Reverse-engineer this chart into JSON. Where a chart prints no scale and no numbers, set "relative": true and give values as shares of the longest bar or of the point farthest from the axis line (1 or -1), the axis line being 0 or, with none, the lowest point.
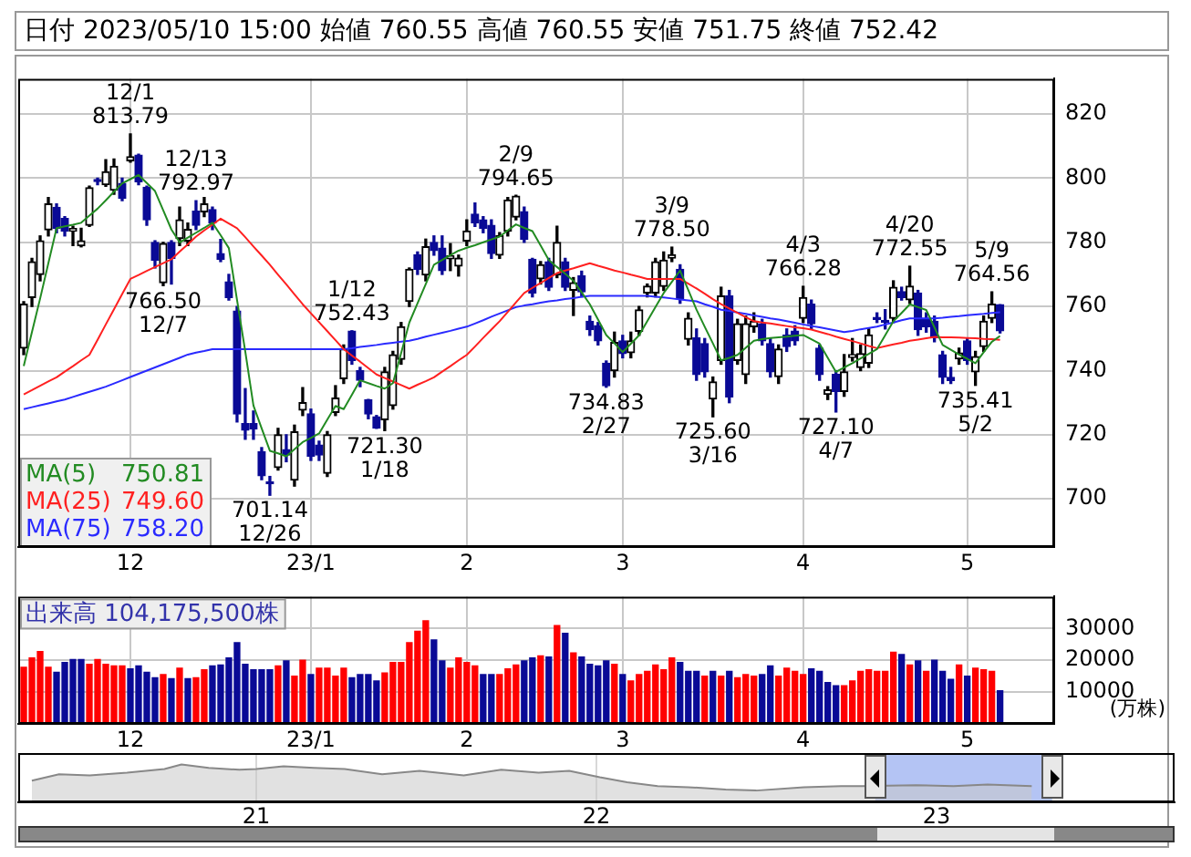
{
  "chart_data": [
    {
      "type": "candlestick",
      "title": "日付 2023/05/10 15:00 始値 760.55 高値 760.55 安値 751.75 終値 752.42",
      "categories": [
        null,
        null,
        null,
        null,
        null,
        null,
        null,
        null,
        null,
        null,
        null,
        null,
        null,
        "12",
        null,
        null,
        null,
        null,
        null,
        null,
        null,
        null,
        null,
        null,
        null,
        null,
        null,
        null,
        null,
        null,
        null,
        null,
        null,
        null,
        null,
        "23/1",
        null,
        null,
        null,
        null,
        null,
        null,
        null,
        null,
        null,
        null,
        null,
        null,
        null,
        null,
        null,
        null,
        null,
        null,
        "2",
        null,
        null,
        null,
        null,
        null,
        null,
        null,
        null,
        null,
        null,
        null,
        null,
        null,
        null,
        null,
        null,
        null,
        null,
        "3",
        null,
        null,
        null,
        null,
        null,
        null,
        null,
        null,
        null,
        null,
        null,
        null,
        null,
        null,
        null,
        null,
        null,
        null,
        null,
        null,
        null,
        "4",
        null,
        null,
        null,
        null,
        null,
        null,
        null,
        null,
        null,
        null,
        null,
        null,
        null,
        null,
        null,
        null,
        null,
        null,
        null,
        "5",
        null,
        null,
        null,
        null
      ],
      "ohlc": [
        [
          747,
          761.5,
          745,
          760.7
        ],
        [
          762.8,
          775,
          760,
          773.9
        ],
        [
          770,
          782,
          768,
          780.5
        ],
        [
          783.9,
          794,
          782,
          792
        ],
        [
          790.9,
          792,
          783,
          784.4
        ],
        [
          787.4,
          788,
          782,
          783.5
        ],
        [
          783.5,
          785,
          779,
          784.3
        ],
        [
          778.9,
          784.4,
          778.6,
          780.5
        ],
        [
          785.3,
          797.5,
          785,
          797
        ],
        [
          799.6,
          800,
          798,
          799
        ],
        [
          798,
          805.8,
          797.5,
          802
        ],
        [
          796.3,
          806,
          795,
          803.7
        ],
        [
          798.4,
          800,
          793,
          793.7
        ],
        [
          805.4,
          813.79,
          805,
          806.7
        ],
        [
          807.2,
          807.5,
          798,
          798.9
        ],
        [
          797.2,
          797.5,
          785.3,
          787
        ],
        [
          780,
          780.5,
          772,
          774.4
        ],
        [
          767.4,
          780,
          766.5,
          779.6
        ],
        [
          780,
          780.5,
          767,
          775
        ],
        [
          781.2,
          791,
          779,
          787
        ],
        [
          780.4,
          786,
          779,
          784
        ],
        [
          789.7,
          792.97,
          784,
          785.3
        ],
        [
          789.5,
          794,
          788,
          792
        ],
        [
          790.2,
          791,
          784,
          786.1
        ],
        [
          776.5,
          780.9,
          774,
          774.7
        ],
        [
          767.7,
          770,
          762,
          762.8
        ],
        [
          758.6,
          760,
          724,
          726.5
        ],
        [
          723.5,
          734.4,
          718.6,
          721.4
        ],
        [
          723.5,
          727.4,
          718.6,
          721.8
        ],
        [
          714.7,
          716,
          706,
          707.2
        ],
        [
          705,
          707,
          701.14,
          704.7
        ],
        [
          709.8,
          722,
          709,
          720
        ],
        [
          715.4,
          720,
          711.6,
          713.7
        ],
        [
          705.9,
          723,
          704,
          720.9
        ],
        [
          727.7,
          734.7,
          726,
          730
        ],
        [
          726.5,
          728,
          712,
          713.3
        ],
        [
          716.8,
          718,
          712,
          713.7
        ],
        [
          708,
          721,
          707,
          720
        ],
        [
          727,
          735.3,
          726,
          731.4
        ],
        [
          737.5,
          748,
          736,
          746.7
        ],
        [
          752.3,
          752.43,
          742,
          743.2
        ],
        [
          740,
          741,
          735,
          737
        ],
        [
          730.9,
          731,
          725,
          726.5
        ],
        [
          725.6,
          726,
          722,
          722.1
        ],
        [
          724.7,
          741,
          721.3,
          739.6
        ],
        [
          729.1,
          746,
          728,
          744.9
        ],
        [
          743.5,
          755,
          742,
          753.7
        ],
        [
          761.6,
          772,
          760,
          771.6
        ],
        [
          776.1,
          777,
          770,
          771.6
        ],
        [
          769.8,
          781,
          768,
          778.6
        ],
        [
          780,
          782,
          776,
          777.4
        ],
        [
          778.2,
          782,
          770,
          771.2
        ],
        [
          774.9,
          779.6,
          771.2,
          775.8
        ],
        [
          772.6,
          776,
          769.5,
          775.1
        ],
        [
          780.4,
          787,
          779,
          783.5
        ],
        [
          788.8,
          792.3,
          785,
          786.1
        ],
        [
          787,
          788,
          783,
          784.4
        ],
        [
          785.3,
          787,
          775,
          776.5
        ],
        [
          776,
          783,
          775,
          782.1
        ],
        [
          783.5,
          794,
          782,
          793.2
        ],
        [
          787.9,
          794.65,
          787,
          794.4
        ],
        [
          789.6,
          791,
          780,
          780.9
        ],
        [
          774.7,
          775,
          763,
          764.2
        ],
        [
          768.6,
          774,
          767,
          773
        ],
        [
          773.9,
          775,
          765,
          766
        ],
        [
          769.8,
          785,
          769,
          780
        ],
        [
          773.9,
          775,
          765,
          766
        ],
        [
          765.1,
          769,
          757.2,
          767.4
        ],
        [
          769.5,
          771,
          763,
          764.6
        ],
        [
          755.4,
          757,
          751,
          752.8
        ],
        [
          754,
          755,
          748,
          749.3
        ],
        [
          742.3,
          743,
          734.83,
          735.3
        ],
        [
          740,
          752,
          738,
          748.8
        ],
        [
          749.3,
          751,
          744,
          745.3
        ],
        [
          745.6,
          752,
          744,
          749.3
        ],
        [
          752.3,
          760,
          751,
          758.9
        ],
        [
          764.2,
          767,
          763,
          766.3
        ],
        [
          764.2,
          775,
          763,
          773.9
        ],
        [
          766.3,
          777,
          765,
          774.4
        ],
        [
          775.1,
          778.5,
          774,
          776.1
        ],
        [
          771.6,
          773,
          761,
          762.5
        ],
        [
          749.8,
          758,
          748,
          756.3
        ],
        [
          750.2,
          753,
          737,
          738.8
        ],
        [
          748.4,
          750,
          738,
          739.6
        ],
        [
          731.2,
          738,
          725.6,
          736.5
        ],
        [
          743.2,
          766,
          742,
          763.3
        ],
        [
          763.3,
          765,
          730,
          731.8
        ],
        [
          743.2,
          756,
          742,
          754.6
        ],
        [
          738.8,
          757,
          736,
          754.6
        ],
        [
          753.7,
          758,
          752,
          755.4
        ],
        [
          754.6,
          756,
          748,
          749.3
        ],
        [
          748.4,
          750,
          738,
          739.6
        ],
        [
          738.1,
          748,
          736,
          746.7
        ],
        [
          751.1,
          753,
          746,
          747.5
        ],
        [
          752.3,
          754,
          748,
          749.3
        ],
        [
          756.3,
          766.28,
          755,
          762.8
        ],
        [
          760.7,
          762,
          753,
          754.6
        ],
        [
          747,
          748,
          737,
          738.8
        ],
        [
          732.6,
          735,
          731,
          734
        ],
        [
          738.8,
          740,
          727.1,
          733.5
        ],
        [
          733.5,
          745,
          732,
          739.6
        ],
        [
          744.1,
          750,
          743,
          745
        ],
        [
          741,
          748,
          740,
          745.3
        ],
        [
          742.3,
          753,
          741,
          751.1
        ],
        [
          756.5,
          758,
          755,
          756
        ],
        [
          755.6,
          759,
          753,
          755.1
        ],
        [
          756.3,
          768,
          755,
          766
        ],
        [
          764.6,
          766,
          762,
          762.8
        ],
        [
          762.1,
          772.55,
          761,
          766.3
        ],
        [
          764.2,
          765,
          751,
          752.8
        ],
        [
          756.3,
          758,
          752,
          753.7
        ],
        [
          755.4,
          757,
          749,
          750.2
        ],
        [
          744.9,
          746,
          736,
          737.9
        ],
        [
          737.9,
          741,
          736,
          736.9
        ],
        [
          743.7,
          747,
          742,
          745.5
        ],
        [
          749.3,
          750,
          742,
          743.2
        ],
        [
          739.6,
          746,
          735.41,
          744.4
        ],
        [
          747.5,
          757,
          746,
          755.4
        ],
        [
          756.3,
          764.56,
          755,
          760.7
        ],
        [
          760.55,
          760.55,
          751.75,
          752.42
        ]
      ],
      "series": [
        {
          "name": "MA(5)",
          "type": "line",
          "color": "#228b22",
          "values": [
            741.4,
            752,
            762.5,
            773.5,
            784.4,
            785,
            785.5,
            786.1,
            788.3,
            790.5,
            793.1,
            795.8,
            798.4,
            799.7,
            801,
            798.5,
            796,
            790,
            784,
            780,
            781.5,
            783,
            784.5,
            786.1,
            782.2,
            778.2,
            762,
            746,
            729.1,
            722,
            715,
            714.2,
            713.3,
            715.5,
            717.7,
            719,
            720.4,
            724.7,
            729,
            728,
            732.5,
            737,
            736.1,
            735.2,
            734.4,
            736.1,
            745.5,
            755,
            761,
            767,
            773,
            774.5,
            776,
            777.4,
            778.3,
            779.1,
            780,
            780.9,
            781.8,
            783.7,
            785.6,
            784.5,
            783.5,
            779,
            774.5,
            772.3,
            770.2,
            768,
            764.4,
            760.7,
            755.9,
            751.1,
            748.5,
            745.8,
            748.4,
            751,
            755.4,
            759.8,
            764.2,
            767.7,
            771.2,
            765.1,
            759,
            753.7,
            748.5,
            743.2,
            744,
            744.9,
            747.1,
            749.3,
            749.8,
            750.2,
            750.4,
            750.6,
            750.9,
            751.1,
            749.8,
            748.4,
            744,
            739.6,
            741,
            742.3,
            743.8,
            745.2,
            746.7,
            751,
            755.4,
            758,
            760.7,
            759.8,
            758.9,
            753.5,
            748,
            746.5,
            745,
            743.7,
            742.3,
            745.7,
            749,
            750.8
          ]
        },
        {
          "name": "MA(25)",
          "type": "line",
          "color": "#ff2020",
          "values": [
            732.6,
            733.9,
            735.3,
            736.6,
            737.9,
            739.7,
            741.4,
            743.2,
            744.9,
            749.6,
            754.4,
            759.1,
            763.9,
            768.6,
            769.8,
            771.1,
            772.3,
            773.5,
            774.7,
            777.1,
            779.4,
            781.8,
            783.7,
            785.5,
            787.4,
            785.9,
            784.4,
            781.6,
            778.7,
            775.9,
            773,
            769.9,
            766.9,
            763.8,
            760.7,
            757.9,
            755.1,
            752.3,
            749.5,
            746.7,
            744.7,
            742.8,
            740.8,
            738.8,
            737.7,
            736.6,
            735.5,
            734.4,
            735.6,
            736.7,
            737.9,
            739.7,
            741.4,
            743.2,
            744.9,
            747.5,
            750.2,
            752.8,
            755.4,
            758.3,
            761.3,
            764.2,
            765.8,
            767.3,
            768.9,
            770.4,
            771.2,
            771.9,
            772.7,
            773.5,
            772.7,
            772,
            771.2,
            770.6,
            769.9,
            769.3,
            768.6,
            768.6,
            768.6,
            768.6,
            768.6,
            767.1,
            765.6,
            764,
            762.3,
            760.7,
            759.4,
            758,
            756.7,
            755.4,
            755,
            754.7,
            754.3,
            753.9,
            753.5,
            753.2,
            752.8,
            752.1,
            751.4,
            750.6,
            749.9,
            749.2,
            748.5,
            747.7,
            747,
            747.6,
            748.2,
            748.7,
            749.3,
            749.7,
            750.1,
            750.5,
            750.4,
            750.4,
            750.3,
            750.2,
            750.1,
            749.9,
            749.8,
            749.6
          ]
        },
        {
          "name": "MA(75)",
          "type": "line",
          "color": "#2a2aff",
          "values": [
            728,
            728.6,
            729.2,
            729.8,
            730.4,
            731,
            731.8,
            732.6,
            733.4,
            734.2,
            735,
            736,
            737,
            738,
            739,
            740,
            741,
            742,
            743,
            744,
            745,
            745.6,
            746.1,
            746.7,
            746.7,
            746.7,
            746.7,
            746.7,
            746.7,
            746.7,
            746.7,
            746.7,
            746.7,
            746.7,
            746.7,
            746.7,
            746.7,
            746.7,
            746.7,
            746.7,
            747,
            747.4,
            747.7,
            748,
            748.4,
            748.7,
            749,
            749.3,
            749.9,
            750.6,
            751.2,
            751.8,
            752.4,
            753.1,
            753.7,
            754.7,
            755.7,
            756.8,
            757.8,
            758.8,
            759.8,
            760.3,
            760.7,
            761.2,
            761.6,
            761.9,
            762.3,
            762.6,
            763,
            763.3,
            763.3,
            763.3,
            763.3,
            763.3,
            763.3,
            763.3,
            763.3,
            763,
            762.8,
            762.5,
            762.2,
            761.9,
            761.6,
            760.7,
            759.9,
            759,
            758.6,
            758.1,
            757.7,
            757.2,
            756.8,
            756.3,
            755.9,
            755.4,
            754.9,
            754.4,
            753.9,
            753.5,
            753,
            752.5,
            752,
            752.4,
            752.9,
            753.3,
            753.7,
            754.4,
            755,
            755.7,
            756.3,
            756.3,
            756.3,
            756.3,
            756.5,
            756.8,
            757,
            757.3,
            757.5,
            757.7,
            758,
            758.2
          ]
        }
      ],
      "ylim": [
        685,
        831
      ],
      "yticks": [
        700,
        720,
        740,
        760,
        780,
        800,
        820
      ],
      "grid": true,
      "legend": "bottom left",
      "annotations": [
        "750.81",
        "749.60",
        "758.20",
        {
          "text": "12/1 813.79",
          "y": 813.79
        },
        {
          "text": "12/13 792.97",
          "y": 792.97
        },
        {
          "text": "766.50 12/7",
          "y": 766.5
        },
        {
          "text": "701.14 12/26",
          "y": 701.14
        },
        {
          "text": "1/12 752.43",
          "y": 752.43
        },
        {
          "text": "721.30 1/18",
          "y": 721.3
        },
        {
          "text": "2/9 794.65",
          "y": 794.65
        },
        {
          "text": "734.83 2/27",
          "y": 734.83
        },
        {
          "text": "3/9 778.50",
          "y": 778.5
        },
        {
          "text": "725.60 3/16",
          "y": 725.6
        },
        {
          "text": "4/3 766.28",
          "y": 766.28
        },
        {
          "text": "727.10 4/7",
          "y": 727.1
        },
        {
          "text": "4/20 772.55",
          "y": 772.55
        },
        {
          "text": "735.41 5/2",
          "y": 735.41
        },
        {
          "text": "5/9 764.56",
          "y": 764.56
        }
      ]
    },
    {
      "type": "bar",
      "title": "出来高 104,175,500株",
      "ylabel": "(万株)",
      "categories": [
        null,
        null,
        null,
        null,
        null,
        null,
        null,
        null,
        null,
        null,
        null,
        null,
        null,
        "12",
        null,
        null,
        null,
        null,
        null,
        null,
        null,
        null,
        null,
        null,
        null,
        null,
        null,
        null,
        null,
        null,
        null,
        null,
        null,
        null,
        null,
        "23/1",
        null,
        null,
        null,
        null,
        null,
        null,
        null,
        null,
        null,
        null,
        null,
        null,
        null,
        null,
        null,
        null,
        null,
        null,
        "2",
        null,
        null,
        null,
        null,
        null,
        null,
        null,
        null,
        null,
        null,
        null,
        null,
        null,
        null,
        null,
        null,
        null,
        null,
        "3",
        null,
        null,
        null,
        null,
        null,
        null,
        null,
        null,
        null,
        null,
        null,
        null,
        null,
        null,
        null,
        null,
        null,
        null,
        null,
        null,
        null,
        "4",
        null,
        null,
        null,
        null,
        null,
        null,
        null,
        null,
        null,
        null,
        null,
        null,
        null,
        null,
        null,
        null,
        null,
        null,
        null,
        "5",
        null,
        null,
        null,
        null
      ],
      "values": [
        17800,
        20700,
        22700,
        17800,
        16200,
        19300,
        20200,
        20200,
        18700,
        20200,
        18700,
        18200,
        18200,
        17300,
        18200,
        16200,
        14500,
        15500,
        14200,
        17500,
        14200,
        14500,
        17000,
        18200,
        18500,
        20700,
        25500,
        18700,
        17000,
        17000,
        17000,
        18200,
        19800,
        15000,
        20000,
        15500,
        17500,
        17500,
        15000,
        17500,
        14500,
        15500,
        15500,
        13500,
        16000,
        19300,
        19300,
        25500,
        29100,
        32400,
        26400,
        19800,
        17500,
        20700,
        19300,
        18200,
        15500,
        15500,
        15500,
        17300,
        18500,
        19800,
        20700,
        21400,
        21000,
        30900,
        28500,
        22300,
        21000,
        18700,
        18200,
        19800,
        18700,
        15500,
        13500,
        15500,
        16500,
        18500,
        17000,
        20700,
        19300,
        16500,
        16500,
        15000,
        16500,
        15000,
        16500,
        14500,
        15500,
        15000,
        15500,
        18200,
        15000,
        17500,
        16500,
        15500,
        17300,
        16500,
        13000,
        12000,
        12000,
        13500,
        16500,
        17000,
        16500,
        16500,
        22500,
        21800,
        18500,
        19800,
        16500,
        20000,
        16500,
        14000,
        18500,
        15000,
        17500,
        17000,
        16500,
        10418
      ],
      "colors": [
        "#ff0000",
        "#ff0000",
        "#ff0000",
        "#ff0000",
        "#0a0a96",
        "#0a0a96",
        "#0a0a96",
        "#0a0a96",
        "#ff0000",
        "#ff0000",
        "#ff0000",
        "#ff0000",
        "#ff0000",
        "#0a0a96",
        "#0a0a96",
        "#0a0a96",
        "#0a0a96",
        "#ff0000",
        "#0a0a96",
        "#ff0000",
        "#0a0a96",
        "#ff0000",
        "#ff0000",
        "#0a0a96",
        "#0a0a96",
        "#0a0a96",
        "#0a0a96",
        "#0a0a96",
        "#0a0a96",
        "#0a0a96",
        "#0a0a96",
        "#ff0000",
        "#0a0a96",
        "#ff0000",
        "#ff0000",
        "#0a0a96",
        "#ff0000",
        "#ff0000",
        "#ff0000",
        "#ff0000",
        "#0a0a96",
        "#0a0a96",
        "#0a0a96",
        "#0a0a96",
        "#ff0000",
        "#ff0000",
        "#ff0000",
        "#ff0000",
        "#ff0000",
        "#ff0000",
        "#0a0a96",
        "#0a0a96",
        "#ff0000",
        "#ff0000",
        "#ff0000",
        "#ff0000",
        "#0a0a96",
        "#0a0a96",
        "#ff0000",
        "#ff0000",
        "#ff0000",
        "#0a0a96",
        "#0a0a96",
        "#ff0000",
        "#0a0a96",
        "#ff0000",
        "#0a0a96",
        "#ff0000",
        "#0a0a96",
        "#0a0a96",
        "#0a0a96",
        "#0a0a96",
        "#ff0000",
        "#0a0a96",
        "#ff0000",
        "#ff0000",
        "#ff0000",
        "#ff0000",
        "#ff0000",
        "#ff0000",
        "#0a0a96",
        "#0a0a96",
        "#0a0a96",
        "#ff0000",
        "#0a0a96",
        "#ff0000",
        "#0a0a96",
        "#ff0000",
        "#ff0000",
        "#ff0000",
        "#0a0a96",
        "#0a0a96",
        "#ff0000",
        "#ff0000",
        "#ff0000",
        "#ff0000",
        "#0a0a96",
        "#0a0a96",
        "#0a0a96",
        "#0a0a96",
        "#ff0000",
        "#ff0000",
        "#ff0000",
        "#ff0000",
        "#ff0000",
        "#ff0000",
        "#ff0000",
        "#0a0a96",
        "#ff0000",
        "#0a0a96",
        "#ff0000",
        "#0a0a96",
        "#0a0a96",
        "#0a0a96",
        "#ff0000",
        "#0a0a96",
        "#ff0000",
        "#ff0000",
        "#ff0000",
        "#0a0a96"
      ],
      "ylim": [
        0,
        40000
      ],
      "yticks": [
        10000,
        20000,
        30000
      ],
      "grid": true
    },
    {
      "type": "area",
      "relative": true,
      "color": "#888888",
      "x": [
        2020.34,
        2020.42,
        2020.51,
        2020.62,
        2020.73,
        2020.78,
        2020.86,
        2020.95,
        2021.0,
        2021.08,
        2021.17,
        2021.26,
        2021.37,
        2021.48,
        2021.61,
        2021.72,
        2021.83,
        2021.92,
        2022.01,
        2022.09,
        2022.18,
        2022.27,
        2022.38,
        2022.47,
        2022.61,
        2022.72,
        2022.78,
        2022.94,
        2023.05,
        2023.15,
        2023.28
      ],
      "values": [
        0.57,
        0.74,
        0.71,
        0.78,
        0.88,
        1,
        0.91,
        0.86,
        0.88,
        0.95,
        0.91,
        0.88,
        0.74,
        0.83,
        0.71,
        0.86,
        0.78,
        0.83,
        0.66,
        0.53,
        0.43,
        0.4,
        0.34,
        0.31,
        0.4,
        0.43,
        0.43,
        0.45,
        0.43,
        0.47,
        0.43
      ],
      "xlim": [
        2020.3,
        2023.7
      ],
      "xticks": [
        {
          "value": 2021,
          "label": "21"
        },
        {
          "value": 2022,
          "label": "22"
        },
        {
          "value": 2023,
          "label": "23"
        }
      ],
      "tick_labels": "x",
      "grid": "x",
      "bands": [
        {
          "axis": "x",
          "from": 2022.82,
          "to": 2023.34,
          "color": "#b4c4f4"
        }
      ]
    }
  ]
}
